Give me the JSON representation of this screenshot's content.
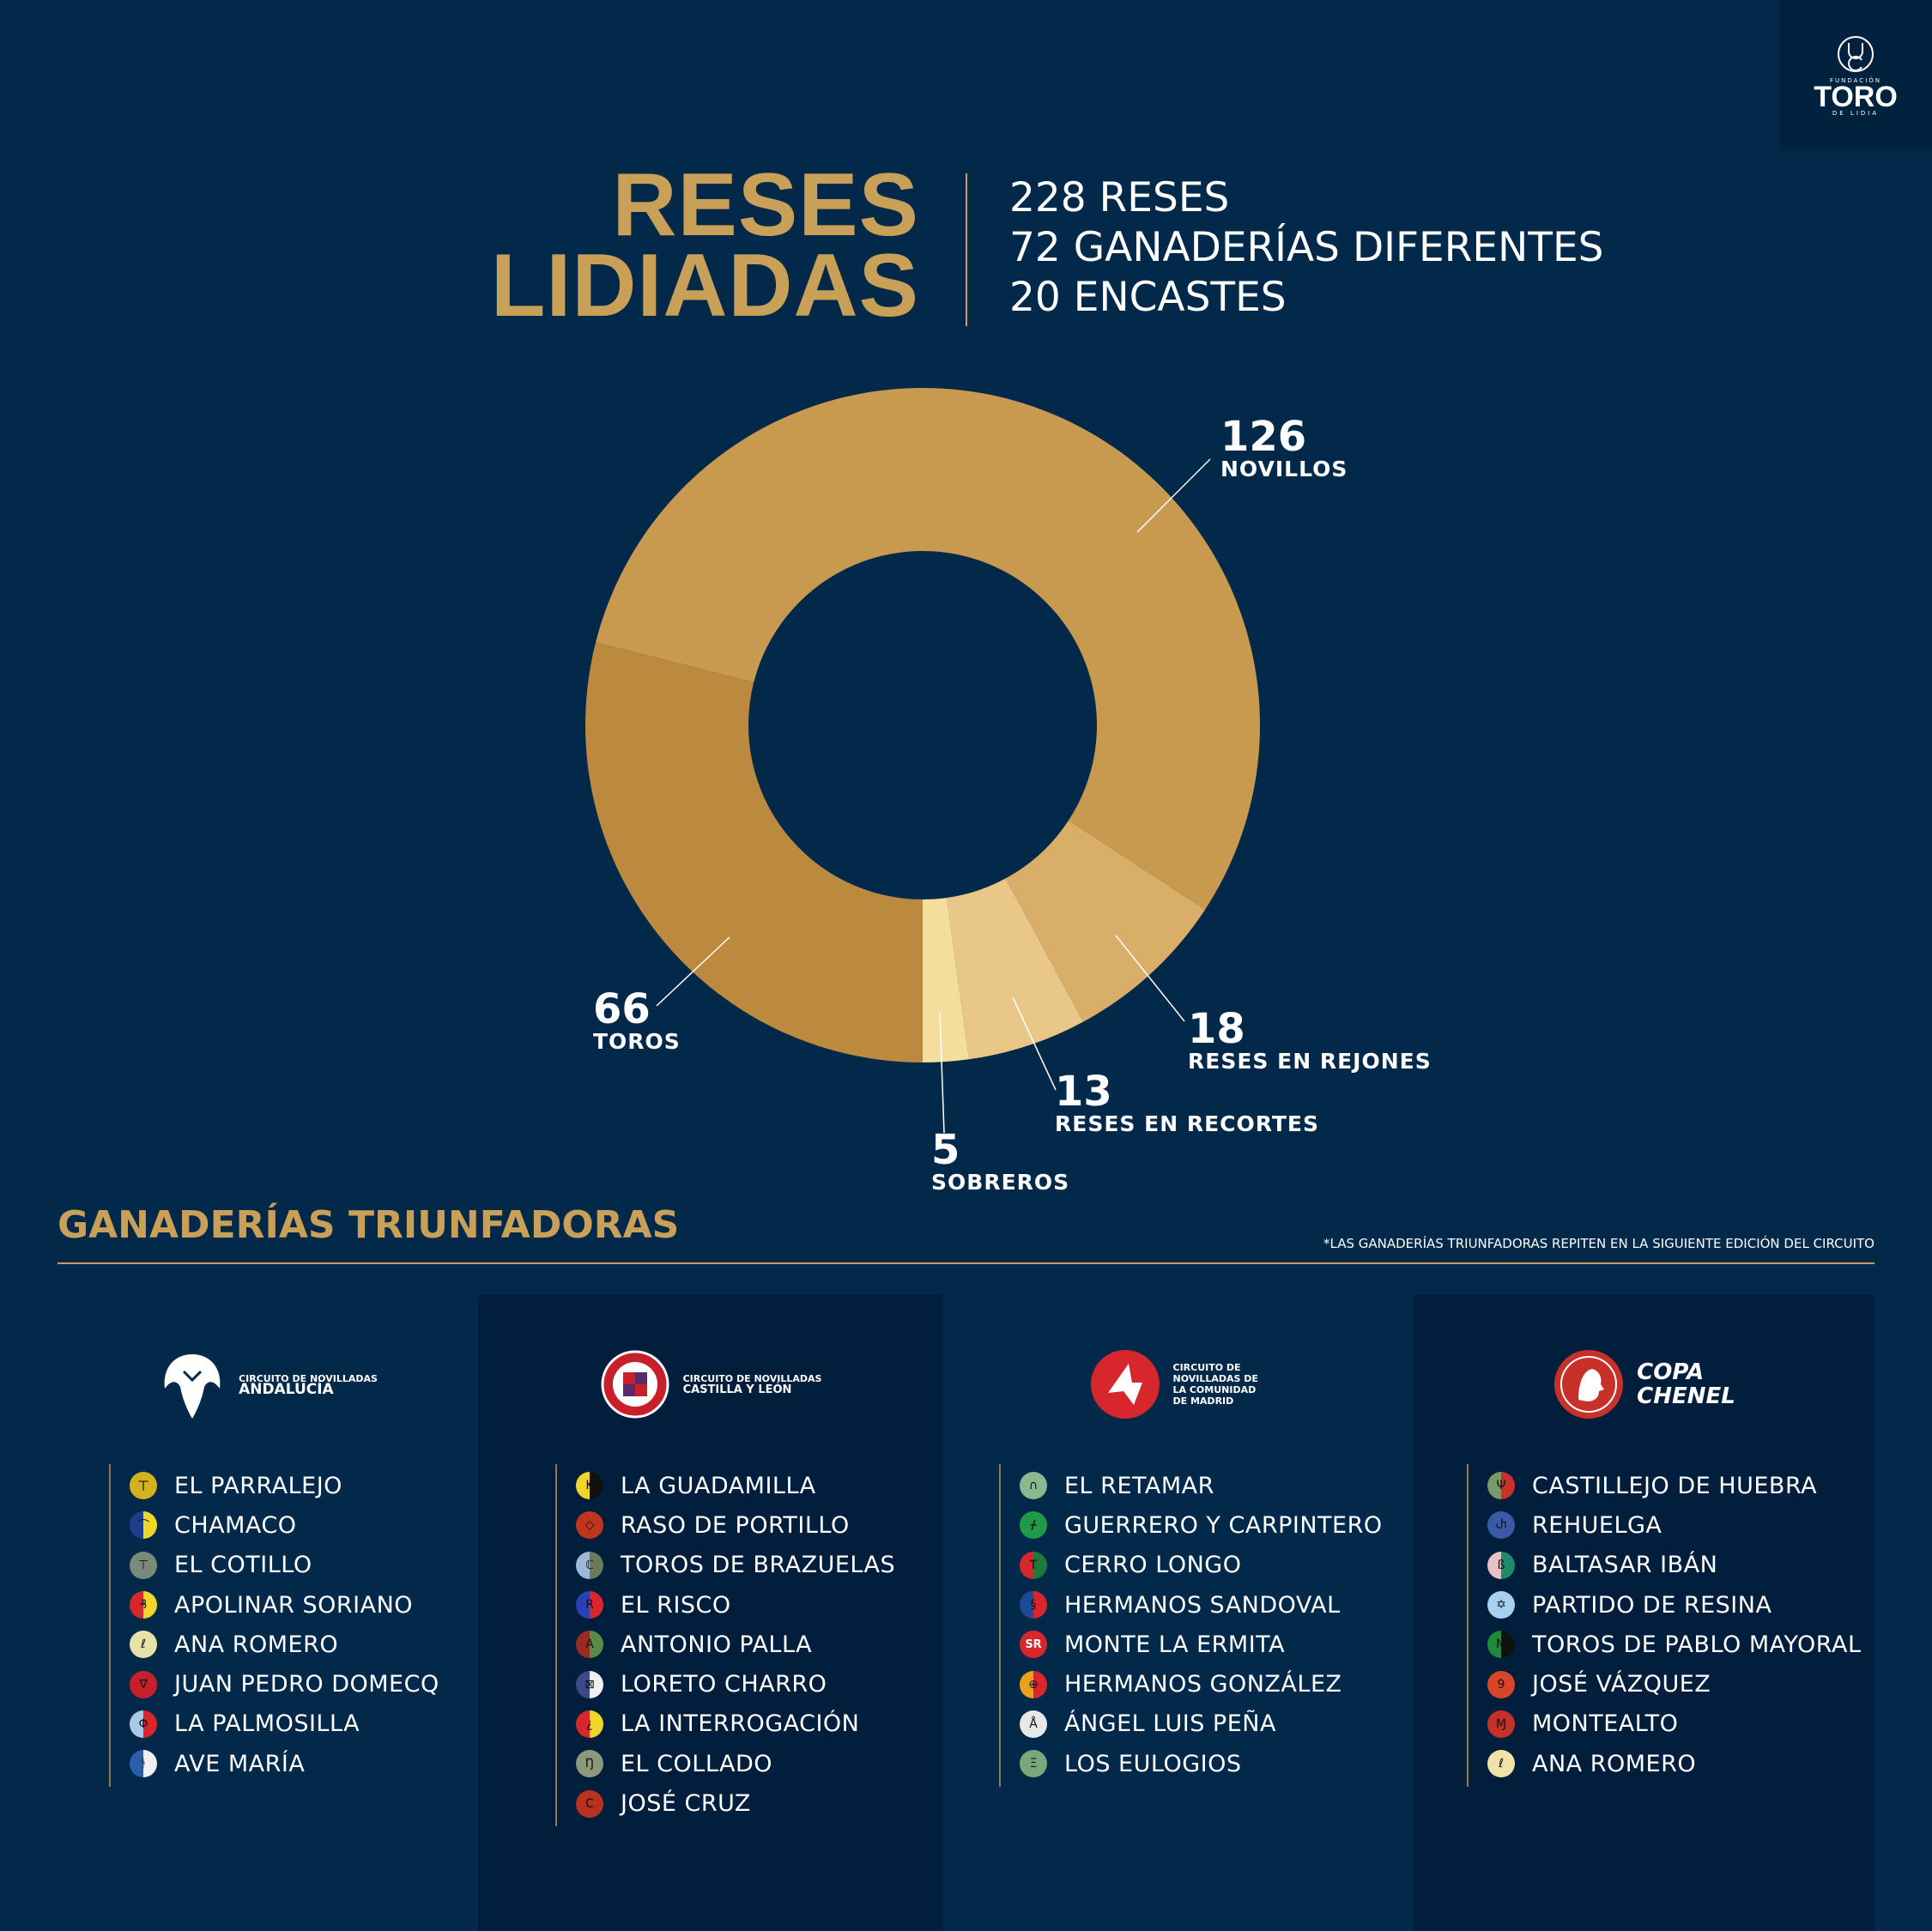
{
  "logo": {
    "small": "FUNDACIÓN",
    "big": "TORO",
    "sub": "DE LIDIA"
  },
  "title": {
    "line1": "RESES",
    "line2": "LIDIADAS"
  },
  "stats": [
    "228 RESES",
    "72 GANADERÍAS DIFERENTES",
    "20 ENCASTES"
  ],
  "chart_data": {
    "type": "pie",
    "categories": [
      "NOVILLOS",
      "RESES EN REJONES",
      "RESES EN RECORTES",
      "SOBREROS",
      "TOROS"
    ],
    "values": [
      126,
      18,
      13,
      5,
      66
    ],
    "colors": [
      "#c79a50",
      "#d9ae69",
      "#e8c788",
      "#f4de9e",
      "#bb8a3f"
    ],
    "labels": [
      {
        "num": "126",
        "text": "NOVILLOS"
      },
      {
        "num": "18",
        "text": "RESES EN REJONES"
      },
      {
        "num": "13",
        "text": "RESES EN RECORTES"
      },
      {
        "num": "5",
        "text": "SOBREROS"
      },
      {
        "num": "66",
        "text": "TOROS"
      }
    ]
  },
  "section": {
    "title": "GANADERÍAS TRIUNFADORAS",
    "footnote": "*LAS GANADERÍAS TRIUNFADORAS REPITEN EN LA SIGUIENTE EDICIÓN DEL CIRCUITO"
  },
  "panels": [
    {
      "logo_small": "CIRCUITO DE NOVILLADAS",
      "logo_big": "ANDALUCÍA",
      "items": [
        {
          "name": "EL PARRALEJO",
          "color": "#d4b21e"
        },
        {
          "name": "CHAMACO",
          "color": "#1d3f8a"
        },
        {
          "name": "EL COTILLO",
          "color": "#7a8a7a"
        },
        {
          "name": "APOLINAR SORIANO",
          "color": "#d8262d"
        },
        {
          "name": "ANA ROMERO",
          "color": "#e8e2a8"
        },
        {
          "name": "JUAN PEDRO DOMECQ",
          "color": "#c8202a"
        },
        {
          "name": "LA PALMOSILLA",
          "color": "#a9c9e8"
        },
        {
          "name": "AVE MARÍA",
          "color": "#2a5fa8"
        }
      ]
    },
    {
      "logo_small": "CIRCUITO DE NOVILLADAS",
      "logo_big": "CASTILLA Y LEÓN",
      "items": [
        {
          "name": "LA GUADAMILLA",
          "color": "#f0d62a"
        },
        {
          "name": "RASO DE PORTILLO",
          "color": "#c0351e"
        },
        {
          "name": "TOROS DE BRAZUELAS",
          "color": "#9fb8d8"
        },
        {
          "name": "EL RISCO",
          "color": "#2a3fb8"
        },
        {
          "name": "ANTONIO PALLA",
          "color": "#9a2a24"
        },
        {
          "name": "LORETO CHARRO",
          "color": "#3a4a8a"
        },
        {
          "name": "LA INTERROGACIÓN",
          "color": "#d8262d"
        },
        {
          "name": "EL COLLADO",
          "color": "#8a9a7a"
        },
        {
          "name": "JOSÉ CRUZ",
          "color": "#b8321e"
        }
      ]
    },
    {
      "logo_small": "CIRCUITO DE NOVILLADAS DE LA COMUNIDAD DE MADRID",
      "logo_big": "",
      "items": [
        {
          "name": "EL RETAMAR",
          "color": "#8ab890"
        },
        {
          "name": "GUERRERO Y CARPINTERO",
          "color": "#1e9a48"
        },
        {
          "name": "CERRO LONGO",
          "color": "#d8262d"
        },
        {
          "name": "HERMANOS SANDOVAL",
          "color": "#1e4a9a"
        },
        {
          "name": "MONTE LA ERMITA",
          "color": "#d8262d"
        },
        {
          "name": "HERMANOS GONZÁLEZ",
          "color": "#e8a21e"
        },
        {
          "name": "ÁNGEL LUIS PEÑA",
          "color": "#e8e8e8"
        },
        {
          "name": "LOS EULOGIOS",
          "color": "#7aa878"
        }
      ]
    },
    {
      "logo_small": "COPA",
      "logo_big": "CHENEL",
      "items": [
        {
          "name": "CASTILLEJO DE HUEBRA",
          "color": "#7a9a6a"
        },
        {
          "name": "REHUELGA",
          "color": "#3a5aa8"
        },
        {
          "name": "BALTASAR IBÁN",
          "color": "#e8c0c8"
        },
        {
          "name": "PARTIDO DE RESINA",
          "color": "#a8d0f0"
        },
        {
          "name": "TOROS DE PABLO MAYORAL",
          "color": "#1e8a3a"
        },
        {
          "name": "JOSÉ VÁZQUEZ",
          "color": "#d8462a"
        },
        {
          "name": "MONTEALTO",
          "color": "#c8302a"
        },
        {
          "name": "ANA ROMERO",
          "color": "#f0e2a8"
        }
      ]
    }
  ]
}
